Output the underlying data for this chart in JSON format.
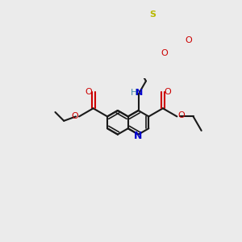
{
  "bg_color": "#ebebeb",
  "bond_color": "#1a1a1a",
  "oxygen_color": "#cc0000",
  "nitrogen_color": "#0000cc",
  "sulfur_color": "#b8b800",
  "nh_color": "#4488aa",
  "figsize": [
    3.0,
    3.0
  ],
  "dpi": 100,
  "xlim": [
    0,
    300
  ],
  "ylim": [
    0,
    300
  ]
}
